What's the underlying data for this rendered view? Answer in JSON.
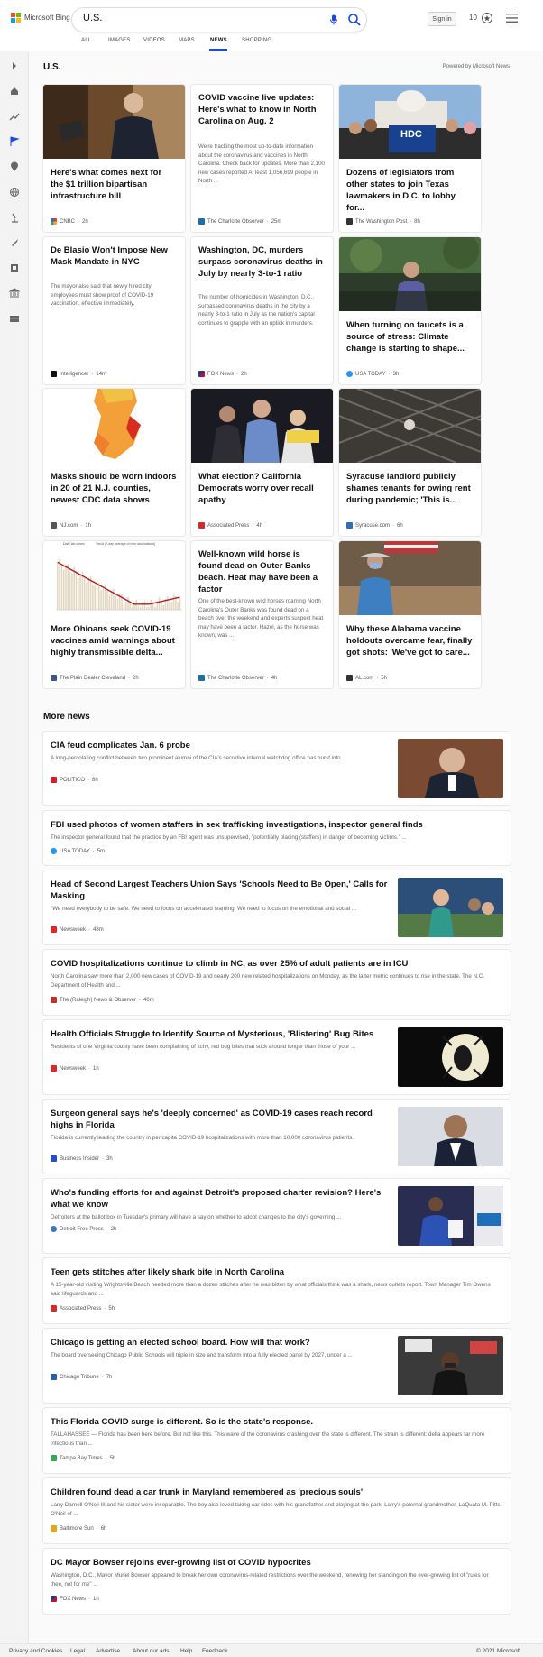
{
  "brand": "Microsoft Bing",
  "search": {
    "value": "U.S."
  },
  "header": {
    "signin": "Sign in",
    "points": "10"
  },
  "tabs": [
    {
      "label": "ALL"
    },
    {
      "label": "IMAGES"
    },
    {
      "label": "VIDEOS"
    },
    {
      "label": "MAPS"
    },
    {
      "label": "NEWS"
    },
    {
      "label": "SHOPPING"
    }
  ],
  "section": {
    "title": "U.S.",
    "powered": "Powered by Microsoft News"
  },
  "cards": [
    {
      "title": "Here's what comes next for the $1 trillion bipartisan infrastructure bill",
      "snippet": "",
      "source": "CNBC",
      "age": "2h",
      "logo_color": "#e23b2f"
    },
    {
      "title": "COVID vaccine live updates: Here's what to know in North Carolina on Aug. 2",
      "snippet": "We're tracking the most up-to-date information about the coronavirus and vaccines in North Carolina. Check back for updates. More than 2,100 new cases reported At least 1,056,699 people in North ...",
      "source": "The Charlotte Observer",
      "age": "25m",
      "logo_color": "#1d6fa5"
    },
    {
      "title": "Dozens of legislators from other states to join Texas lawmakers in D.C. to lobby for...",
      "snippet": "",
      "source": "The Washington Post",
      "age": "8h",
      "logo_color": "#333333"
    },
    {
      "title": "De Blasio Won't Impose New Mask Mandate in NYC",
      "snippet": "The mayor also said that newly hired city employees must show proof of COVID-19 vaccination, effective immediately.",
      "source": "Intelligencer",
      "age": "14m",
      "logo_color": "#111111"
    },
    {
      "title": "Washington, DC, murders surpass coronavirus deaths in July by nearly 3-to-1 ratio",
      "snippet": "The number of homicides in Washington, D.C., surpassed coronavirus deaths in the city by a nearly 3-to-1 ratio in July as the nation's capital continues to grapple with an uptick in murders.",
      "source": "FOX News",
      "age": "2h",
      "logo_color": "#1b3c8f"
    },
    {
      "title": "When turning on faucets is a source of stress: Climate change is starting to shape...",
      "snippet": "",
      "source": "USA TODAY",
      "age": "3h",
      "logo_color": "#2196f3"
    },
    {
      "title": "Masks should be worn indoors in 20 of 21 N.J. counties, newest CDC data shows",
      "snippet": "",
      "source": "NJ.com",
      "age": "1h",
      "logo_color": "#555555"
    },
    {
      "title": "What election? California Democrats worry over recall apathy",
      "snippet": "",
      "source": "Associated Press",
      "age": "4h",
      "logo_color": "#d02d2d"
    },
    {
      "title": "Syracuse landlord publicly shames tenants for owing rent during pandemic; 'This is...",
      "snippet": "",
      "source": "Syracuse.com",
      "age": "6h",
      "logo_color": "#2e6fb7"
    },
    {
      "title": "More Ohioans seek COVID-19 vaccines amid warnings about highly transmissible delta...",
      "snippet": "",
      "source": "The Plain Dealer Cleveland",
      "age": "2h",
      "logo_color": "#3b5a86"
    },
    {
      "title": "Well-known wild horse is found dead on Outer Banks beach. Heat may have been a factor",
      "snippet": "One of the best-known wild horses roaming North Carolina's Outer Banks was found dead on a beach over the weekend and experts suspect heat may have been a factor. Hazel, as the horse was known, was ...",
      "source": "The Charlotte Observer",
      "age": "4h",
      "logo_color": "#1d6fa5"
    },
    {
      "title": "Why these Alabama vaccine holdouts overcame fear, finally got shots: 'We've got to care...",
      "snippet": "",
      "source": "AL.com",
      "age": "5h",
      "logo_color": "#333333"
    }
  ],
  "chart_legend": {
    "a": "Daily lab doses",
    "b": "Trend (7-day average of new vaccinations)"
  },
  "hdc_text": "HDC",
  "more_news": {
    "title": "More news",
    "items": [
      {
        "title": "CIA feud complicates Jan. 6 probe",
        "snippet": "A long-percolating conflict between two prominent alumni of the CIA's secretive internal watchdog office has burst into",
        "source": "POLITICO",
        "age": "8h",
        "logo_color": "#d0202e"
      },
      {
        "title": "FBI used photos of women staffers in sex trafficking investigations, inspector general finds",
        "snippet": "The inspector general found that the practice by an FBI agent was unsupervised, \"potentially placing (staffers) in danger of becoming victims.\" ...",
        "source": "USA TODAY",
        "age": "5m",
        "logo_color": "#2196f3"
      },
      {
        "title": "Head of Second Largest Teachers Union Says 'Schools Need to Be Open,' Calls for Masking",
        "snippet": "\"We need everybody to be safe. We need to focus on accelerated learning. We need to focus on the emotional and social ...",
        "source": "Newsweek",
        "age": "48m",
        "logo_color": "#e0262b"
      },
      {
        "title": "COVID hospitalizations continue to climb in NC, as over 25% of adult patients are in ICU",
        "snippet": "North Carolina saw more than 2,000 new cases of COVID-19 and nearly 200 new related hospitalizations on Monday, as the latter metric continues to rise in the state. The N.C. Department of Health and ...",
        "source": "The (Raleigh) News & Observer",
        "age": "40m",
        "logo_color": "#c4302b"
      },
      {
        "title": "Health Officials Struggle to Identify Source of Mysterious, 'Blistering' Bug Bites",
        "snippet": "Residents of one Virginia county have been complaining of itchy, red bug bites that stick around longer than those of your ...",
        "source": "Newsweek",
        "age": "1h",
        "logo_color": "#e0262b"
      },
      {
        "title": "Surgeon general says he's 'deeply concerned' as COVID-19 cases reach record highs in Florida",
        "snippet": "Florida is currently leading the country in per capita COVID-19 hospitalizations with more than 10,000 coronavirus patients.",
        "source": "Business Insider",
        "age": "3h",
        "logo_color": "#2451c9"
      },
      {
        "title": "Who's funding efforts for and against Detroit's proposed charter revision? Here's what we know",
        "snippet": "Detroiters at the ballot box in Tuesday's primary will have a say on whether to adopt changes to the city's governing ...",
        "source": "Detroit Free Press",
        "age": "2h",
        "logo_color": "#3a78c3"
      },
      {
        "title": "Teen gets stitches after likely shark bite in North Carolina",
        "snippet": "A 15-year-old visiting Wrightsville Beach needed more than a dozen stitches after he was bitten by what officials think was a shark, news outlets report. Town Manager Tim Owens said lifeguards and ...",
        "source": "Associated Press",
        "age": "5h",
        "logo_color": "#d02d2d"
      },
      {
        "title": "Chicago is getting an elected school board. How will that work?",
        "snippet": "The board overseeing Chicago Public Schools will triple in size and transform into a fully elected panel by 2027, under a ...",
        "source": "Chicago Tribune",
        "age": "7h",
        "logo_color": "#2d5da8"
      },
      {
        "title": "This Florida COVID surge is different. So is the state's response.",
        "snippet": "TALLAHASSEE — Florida has been here before. But not like this. This wave of the coronavirus crashing over the state is different. The strain is different: delta appears far more infectious than ...",
        "source": "Tampa Bay Times",
        "age": "5h",
        "logo_color": "#3aa655"
      },
      {
        "title": "Children found dead a car trunk in Maryland remembered as 'precious souls'",
        "snippet": "Larry Darnell O'Neil III and his sister were inseparable. The boy also loved taking car rides with his grandfather and playing at the park, Larry's paternal grandmother, LaQuata M. Pitts O'Neil of ...",
        "source": "Baltimore Sun",
        "age": "6h",
        "logo_color": "#e9a21c"
      },
      {
        "title": "DC Mayor Bowser rejoins ever-growing list of COVID hypocrites",
        "snippet": "Washington, D.C., Mayor Muriel Bowser appeared to break her own coronavirus-related restrictions over the weekend, renewing her standing on the ever-growing list of \"rules for thee, not for me\" ...",
        "source": "FOX News",
        "age": "1h",
        "logo_color": "#1b3c8f"
      }
    ]
  },
  "footer": {
    "links": [
      "Privacy and Cookies",
      "Legal",
      "Advertise",
      "About our ads",
      "Help",
      "Feedback"
    ],
    "copyright": "© 2021 Microsoft"
  },
  "colors": {
    "accent": "#174ae4",
    "brand_red": "#f25022",
    "brand_green": "#7fba00",
    "brand_blue": "#00a4ef",
    "brand_yellow": "#ffb900"
  }
}
